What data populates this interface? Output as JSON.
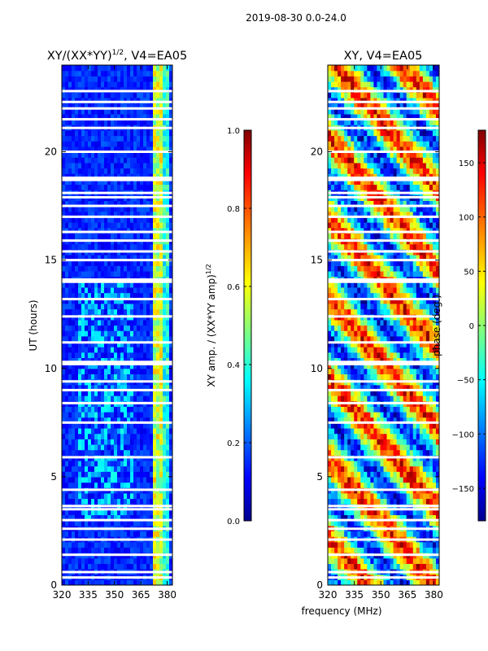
{
  "figure_title": "2019-08-30 0.0-24.0",
  "x_axis_label": "frequency (MHz)",
  "colors": {
    "background": "#ffffff",
    "gap": "#ffffff",
    "low": "#00008f",
    "high": "#800000"
  },
  "chart_data": [
    {
      "type": "heatmap",
      "title_main": "XY/(XX*YY)",
      "title_sup": "1/2",
      "title_tail": ", V4=EA05",
      "xlabel": "",
      "ylabel": "UT (hours)",
      "xlim": [
        320,
        383
      ],
      "ylim": [
        0,
        24
      ],
      "x_ticks": [
        320,
        335,
        350,
        365,
        380
      ],
      "y_ticks": [
        0,
        5,
        10,
        15,
        20
      ],
      "colorbar": {
        "label_main": "XY amp. / (XX*YY amp)",
        "label_sup": "1/2",
        "range": [
          0.0,
          1.0
        ],
        "ticks": [
          "0.0",
          "0.2",
          "0.4",
          "0.6",
          "0.8",
          "1.0"
        ]
      }
    },
    {
      "type": "heatmap",
      "title": "XY, V4=EA05",
      "xlabel": "frequency (MHz)",
      "ylabel": "",
      "xlim": [
        320,
        383
      ],
      "ylim": [
        0,
        24
      ],
      "x_ticks": [
        320,
        335,
        350,
        365,
        380
      ],
      "y_ticks": [
        0,
        5,
        10,
        15,
        20
      ],
      "colorbar": {
        "label": "phase (deg.)",
        "range": [
          -180,
          180
        ],
        "ticks": [
          "-150",
          "-100",
          "-50",
          "0",
          "50",
          "100",
          "150"
        ]
      }
    }
  ]
}
